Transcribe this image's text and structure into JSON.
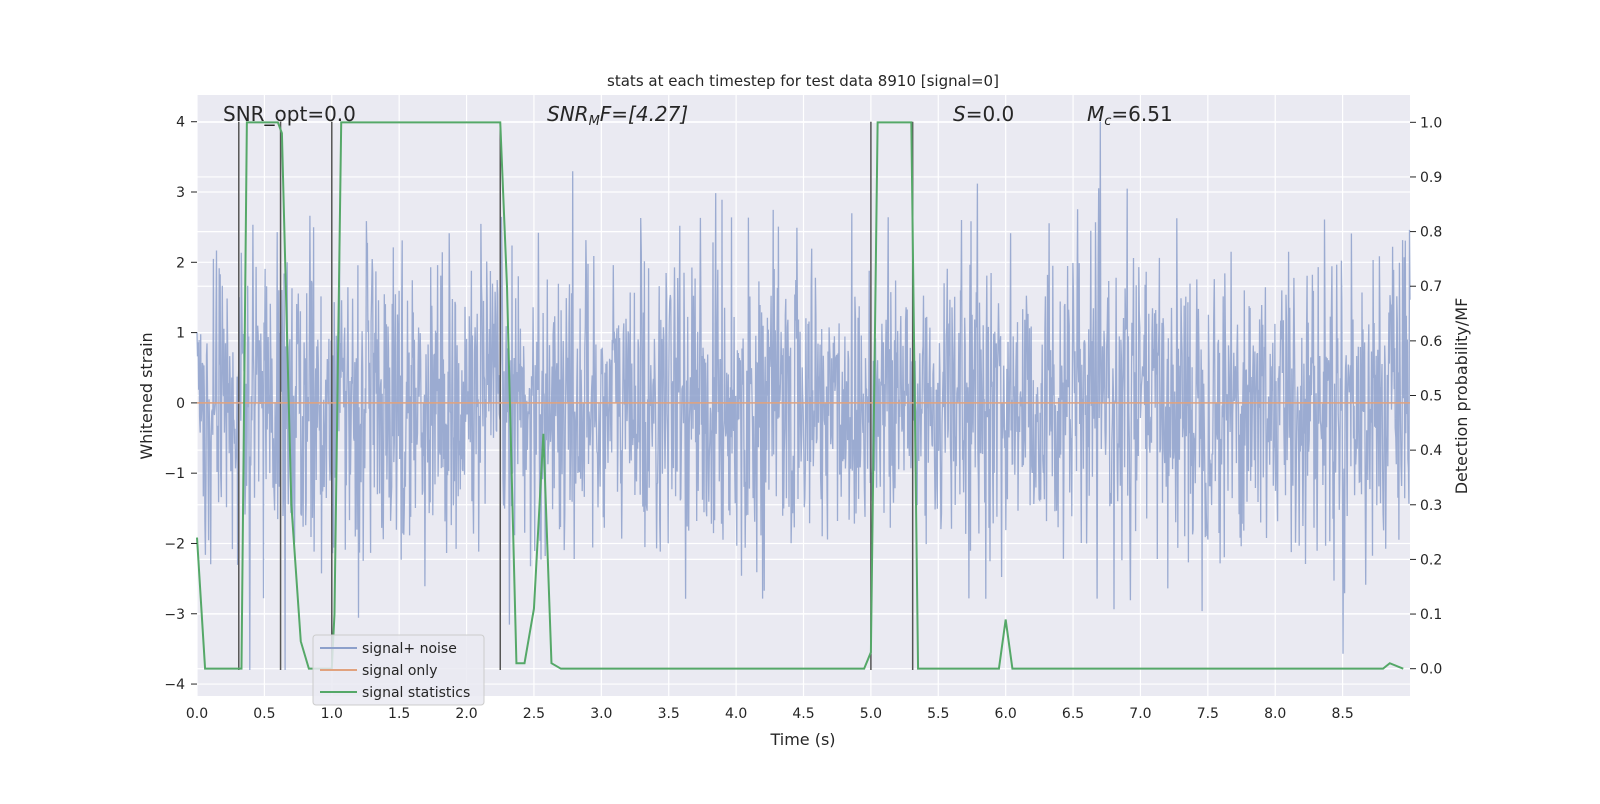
{
  "chart_data": {
    "type": "line",
    "title": "stats at each timestep for test data 8910 [signal=0]",
    "xlabel": "Time (s)",
    "ylabel": "Whitened strain",
    "ylabel_right": "Detection probability/MF",
    "xlim": [
      0,
      9.0
    ],
    "ylim": [
      -4.17,
      4.38
    ],
    "ylim_right": [
      -0.05,
      1.05
    ],
    "x_ticks": [
      "0.0",
      "0.5",
      "1.0",
      "1.5",
      "2.0",
      "2.5",
      "3.0",
      "3.5",
      "4.0",
      "4.5",
      "5.0",
      "5.5",
      "6.0",
      "6.5",
      "7.0",
      "7.5",
      "8.0",
      "8.5"
    ],
    "y_ticks": [
      "4",
      "3",
      "2",
      "1",
      "0",
      "−1",
      "−2",
      "−3",
      "−4"
    ],
    "y_ticks_right": [
      "1.0",
      "0.9",
      "0.8",
      "0.7",
      "0.6",
      "0.5",
      "0.4",
      "0.3",
      "0.2",
      "0.1",
      "0.0"
    ],
    "annotations": {
      "snr_opt": "SNR_opt=0.0",
      "snr_mf_label": "SNR",
      "snr_mf_sub": "M",
      "snr_mf_rest": "F=[4.27]",
      "s_label": "S",
      "s_rest": "=0.0",
      "mc_label": "M",
      "mc_sub": "c",
      "mc_rest": "=6.51"
    },
    "legend": {
      "placement": "lower-left",
      "entries": [
        "signal+ noise",
        "signal only",
        "signal statistics"
      ]
    },
    "colors": {
      "noise": "#8da0cb",
      "signal": "#e1a27e",
      "stats": "#55a868",
      "markers": "#555555",
      "bg": "#eaeaf2"
    },
    "series": [
      {
        "name": "signal+ noise",
        "axis": "left",
        "kind": "gaussian-noise",
        "std": 1.0,
        "samples": 2300,
        "range": [
          -3.8,
          4.0
        ]
      },
      {
        "name": "signal only",
        "axis": "left",
        "x": [
          0,
          9.0
        ],
        "y": [
          0,
          0
        ]
      },
      {
        "name": "signal statistics",
        "axis": "right",
        "x": [
          0.0,
          0.06,
          0.3,
          0.33,
          0.37,
          0.6,
          0.63,
          0.7,
          0.77,
          0.83,
          1.0,
          1.02,
          1.07,
          2.25,
          2.3,
          2.37,
          2.43,
          2.5,
          2.57,
          2.63,
          2.7,
          2.9,
          3.4,
          4.95,
          5.0,
          5.05,
          5.3,
          5.35,
          5.6,
          5.95,
          6.0,
          6.05,
          6.6,
          8.8,
          8.85,
          8.95
        ],
        "y": [
          0.24,
          0.0,
          0.0,
          0.0,
          1.0,
          1.0,
          0.98,
          0.3,
          0.05,
          0.0,
          0.0,
          0.1,
          1.0,
          1.0,
          0.7,
          0.01,
          0.01,
          0.11,
          0.43,
          0.01,
          0.0,
          0.0,
          0.0,
          0.0,
          0.03,
          1.0,
          1.0,
          0.0,
          0.0,
          0.0,
          0.09,
          0.0,
          0.0,
          0.0,
          0.01,
          0.0
        ]
      }
    ],
    "marker_lines": {
      "x": [
        0.31,
        0.62,
        1.0,
        2.25,
        5.0,
        5.31
      ],
      "y_range": [
        -3.8,
        4.0
      ]
    },
    "grid": true
  }
}
